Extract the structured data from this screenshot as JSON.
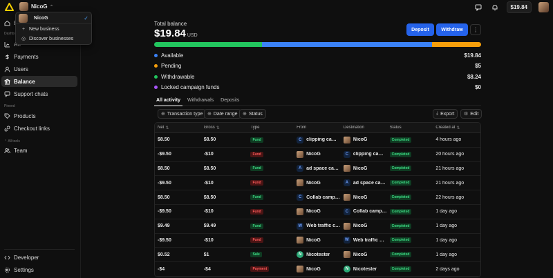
{
  "header": {
    "business_name": "NicoG",
    "balance_pill": "$19.84"
  },
  "dropdown": {
    "current": "NicoG",
    "items": [
      {
        "label": "New business"
      },
      {
        "label": "Discover businesses"
      }
    ]
  },
  "sidebar": {
    "top_items": [
      {
        "label": "Bi"
      },
      {
        "label": "An"
      },
      {
        "label": "Payments"
      },
      {
        "label": "Users"
      },
      {
        "label": "Balance"
      },
      {
        "label": "Support chats"
      }
    ],
    "section_dashboard": "Dashboa",
    "section_pinned": "Pinned",
    "pinned_items": [
      {
        "label": "Products"
      },
      {
        "label": "Checkout links"
      }
    ],
    "section_all_tools": "All tools",
    "tool_items": [
      {
        "label": "Team"
      }
    ],
    "bottom_items": [
      {
        "label": "Developer"
      },
      {
        "label": "Settings"
      }
    ]
  },
  "balance": {
    "label": "Total balance",
    "amount": "$19.84",
    "currency": "USD",
    "deposit_label": "Deposit",
    "withdraw_label": "Withdraw",
    "more_label": "⋮",
    "bar_segments": [
      {
        "color": "#22c55e",
        "fraction": 0.33
      },
      {
        "color": "#3b82f6",
        "fraction": 0.52
      },
      {
        "color": "#f59e0b",
        "fraction": 0.15
      }
    ],
    "legend": [
      {
        "label": "Available",
        "amount": "$19.84",
        "color": "#3b82f6"
      },
      {
        "label": "Pending",
        "amount": "$5",
        "color": "#f59e0b"
      },
      {
        "label": "Withdrawable",
        "amount": "$8.24",
        "color": "#22c55e"
      },
      {
        "label": "Locked campaign funds",
        "amount": "$0",
        "color": "#a855f7"
      }
    ]
  },
  "tabs": [
    {
      "label": "All activity"
    },
    {
      "label": "Withdrawals"
    },
    {
      "label": "Deposits"
    }
  ],
  "filters": {
    "transaction_type": "Transaction type",
    "date_range": "Date range",
    "status": "Status",
    "export": "Export",
    "edit": "Edit"
  },
  "table": {
    "columns": [
      "Net",
      "Gross",
      "Type",
      "From",
      "Destination",
      "Status",
      "Created at"
    ],
    "rows": [
      {
        "net": "$8.50",
        "gross": "$8.50",
        "type": "Fund",
        "type_kind": "fund",
        "from": "clipping camp...",
        "from_av": "C",
        "from_kind": "letter",
        "dest": "NicoG",
        "dest_av": "",
        "dest_kind": "photo",
        "status": "Completed",
        "created": "4 hours ago"
      },
      {
        "net": "-$9.50",
        "gross": "-$10",
        "type": "Fund",
        "type_kind": "payment",
        "from": "NicoG",
        "from_av": "",
        "from_kind": "photo",
        "dest": "clipping camp...",
        "dest_av": "C",
        "dest_kind": "letter",
        "status": "Completed",
        "created": "20 hours ago"
      },
      {
        "net": "$8.50",
        "gross": "$8.50",
        "type": "Fund",
        "type_kind": "fund",
        "from": "ad space cam...",
        "from_av": "A",
        "from_kind": "letter",
        "dest": "NicoG",
        "dest_av": "",
        "dest_kind": "photo",
        "status": "Completed",
        "created": "21 hours ago"
      },
      {
        "net": "-$9.50",
        "gross": "-$10",
        "type": "Fund",
        "type_kind": "payment",
        "from": "NicoG",
        "from_av": "",
        "from_kind": "photo",
        "dest": "ad space cam...",
        "dest_av": "A",
        "dest_kind": "letter",
        "status": "Completed",
        "created": "21 hours ago"
      },
      {
        "net": "$8.50",
        "gross": "$8.50",
        "type": "Fund",
        "type_kind": "fund",
        "from": "Collab campai...",
        "from_av": "C",
        "from_kind": "letter",
        "dest": "NicoG",
        "dest_av": "",
        "dest_kind": "photo",
        "status": "Completed",
        "created": "22 hours ago"
      },
      {
        "net": "-$9.50",
        "gross": "-$10",
        "type": "Fund",
        "type_kind": "payment",
        "from": "NicoG",
        "from_av": "",
        "from_kind": "photo",
        "dest": "Collab campai...",
        "dest_av": "C",
        "dest_kind": "letter",
        "status": "Completed",
        "created": "1 day ago"
      },
      {
        "net": "$9.49",
        "gross": "$9.49",
        "type": "Fund",
        "type_kind": "fund",
        "from": "Web traffic ca...",
        "from_av": "W",
        "from_kind": "letter",
        "dest": "NicoG",
        "dest_av": "",
        "dest_kind": "photo",
        "status": "Completed",
        "created": "1 day ago"
      },
      {
        "net": "-$9.50",
        "gross": "-$10",
        "type": "Fund",
        "type_kind": "payment",
        "from": "NicoG",
        "from_av": "",
        "from_kind": "photo",
        "dest": "Web traffic ca...",
        "dest_av": "W",
        "dest_kind": "letter",
        "status": "Completed",
        "created": "1 day ago"
      },
      {
        "net": "$0.52",
        "gross": "$1",
        "type": "Sale",
        "type_kind": "sale",
        "from": "Nicotester",
        "from_av": "N",
        "from_kind": "green",
        "dest": "NicoG",
        "dest_av": "",
        "dest_kind": "photo",
        "status": "Completed",
        "created": "1 day ago"
      },
      {
        "net": "-$4",
        "gross": "-$4",
        "type": "Payment",
        "type_kind": "payment",
        "from": "NicoG",
        "from_av": "",
        "from_kind": "photo",
        "dest": "Nicotester",
        "dest_av": "N",
        "dest_kind": "green",
        "status": "Completed",
        "created": "2 days ago"
      }
    ]
  }
}
